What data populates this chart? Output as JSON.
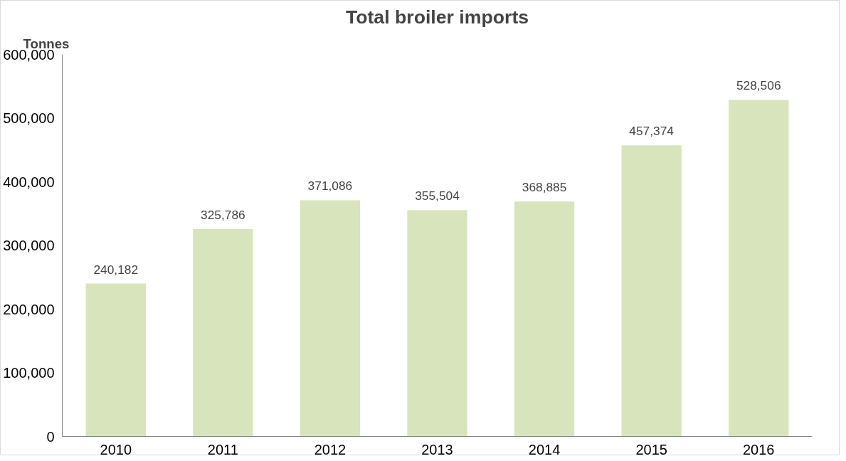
{
  "chart_data": {
    "type": "bar",
    "title": "Total broiler imports",
    "ylabel": "Tonnes",
    "categories": [
      "2010",
      "2011",
      "2012",
      "2013",
      "2014",
      "2015",
      "2016"
    ],
    "values": [
      240182,
      325786,
      371086,
      355504,
      368885,
      457374,
      528506
    ],
    "value_labels": [
      "240,182",
      "325,786",
      "371,086",
      "355,504",
      "368,885",
      "457,374",
      "528,506"
    ],
    "color": "#d8e4bc",
    "grid": false,
    "ylim": [
      0,
      600000
    ],
    "yticks": [
      {
        "value": 0,
        "label": "0"
      },
      {
        "value": 100000,
        "label": "100,000"
      },
      {
        "value": 200000,
        "label": "200,000"
      },
      {
        "value": 300000,
        "label": "300,000"
      },
      {
        "value": 400000,
        "label": "400,000"
      },
      {
        "value": 500000,
        "label": "500,000"
      },
      {
        "value": 600000,
        "label": "600,000"
      }
    ]
  }
}
